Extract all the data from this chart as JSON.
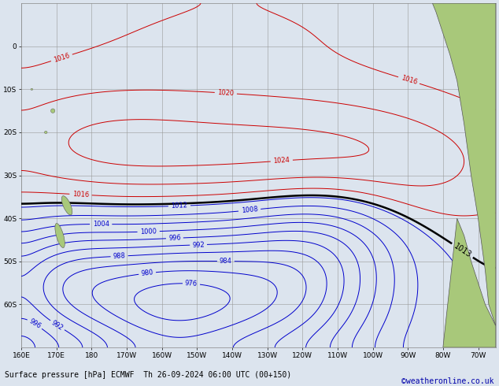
{
  "title": "Surface pressure [hPa] ECMWF",
  "datetime_str": "Th 26-09-2024 06:00 UTC (00+150)",
  "credit": "©weatheronline.co.uk",
  "lon_min": 160,
  "lon_max": 295,
  "lat_min": -70,
  "lat_max": 10,
  "contour_interval": 4,
  "pressure_min": 960,
  "pressure_max": 1032,
  "background_color": "#dce4ee",
  "land_color": "#a8c87a",
  "grid_color": "#999999",
  "line_color_low": "#0000cc",
  "line_color_high": "#cc0000",
  "line_color_base": "#000000",
  "base_pressure": 1013,
  "xlabel_ticks": [
    160,
    170,
    180,
    190,
    200,
    210,
    220,
    230,
    240,
    250,
    260,
    270,
    280,
    290
  ],
  "xlabel_labels": [
    "160E",
    "170E",
    "180",
    "170W",
    "160W",
    "150W",
    "140W",
    "130W",
    "120W",
    "110W",
    "100W",
    "90W",
    "80W",
    "70W"
  ],
  "ylabel_ticks": [
    -60,
    -50,
    -40,
    -30,
    -20,
    -10,
    0
  ],
  "ylabel_labels": [
    "60S",
    "50S",
    "40S",
    "30S",
    "20S",
    "10S",
    "0"
  ]
}
